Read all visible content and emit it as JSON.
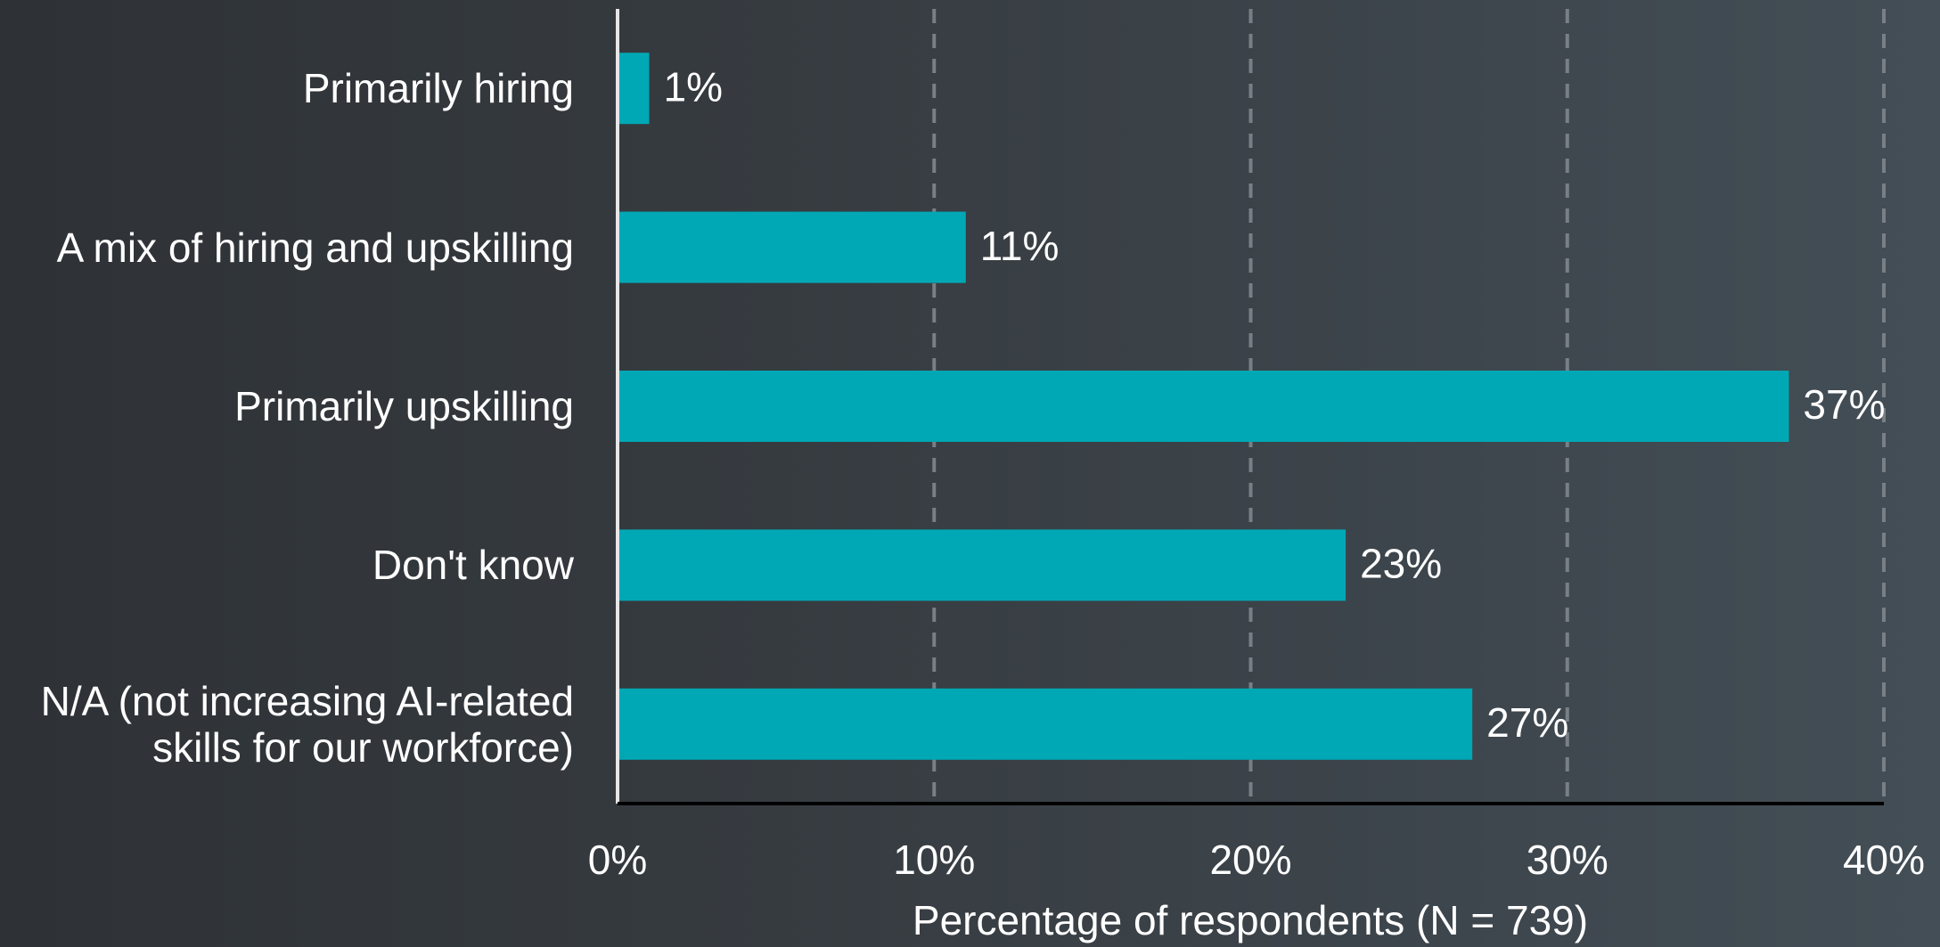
{
  "chart_data": {
    "type": "barh",
    "categories": [
      "Primarily hiring",
      "A mix of hiring and upskilling",
      "Primarily upskilling",
      "Don't know",
      "N/A (not increasing AI-related\nskills for our workforce)"
    ],
    "values": [
      1,
      11,
      37,
      23,
      27
    ],
    "value_labels": [
      "1%",
      "11%",
      "37%",
      "23%",
      "27%"
    ],
    "color": "#00a8b5",
    "xlim": [
      0,
      40
    ],
    "xticks": [
      {
        "value": 0,
        "label": "0%"
      },
      {
        "value": 10,
        "label": "10%"
      },
      {
        "value": 20,
        "label": "20%"
      },
      {
        "value": 30,
        "label": "30%"
      },
      {
        "value": 40,
        "label": "40%"
      }
    ],
    "xlabel": "Percentage of respondents (N = 739)",
    "grid": true
  }
}
